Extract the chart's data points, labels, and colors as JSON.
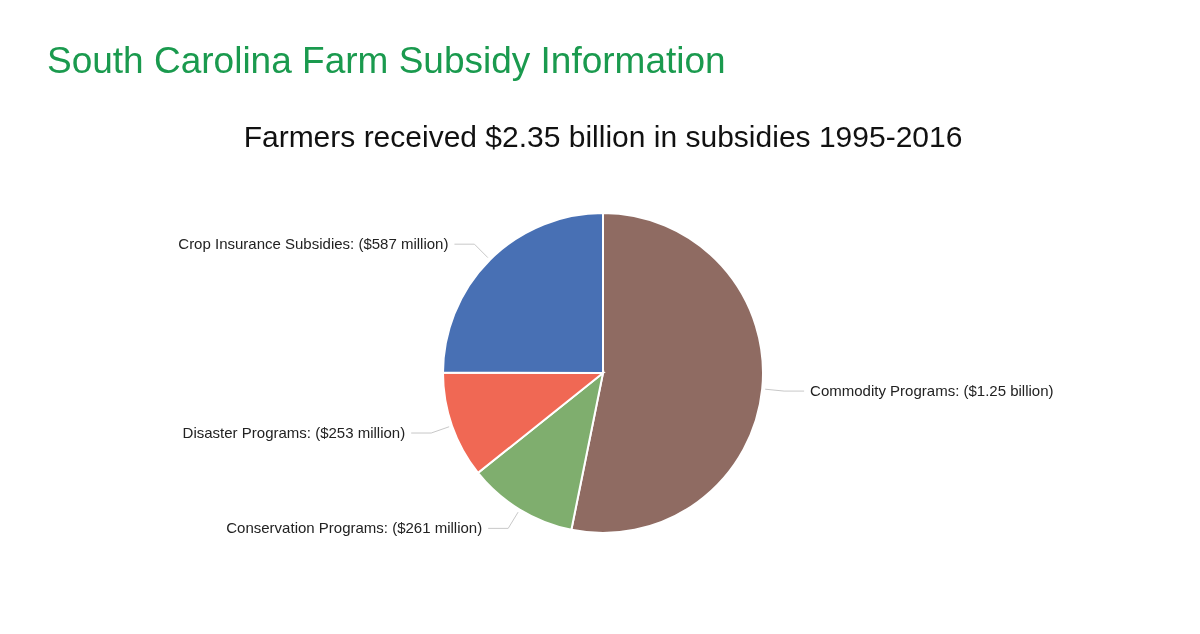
{
  "chart_data": {
    "type": "pie",
    "title": "South Carolina Farm Subsidy Information",
    "subtitle": "Farmers received $2.35 billion in subsidies 1995-2016",
    "categories": [
      "Commodity Programs: ($1.25 billion)",
      "Conservation Programs: ($261 million)",
      "Disaster Programs: ($253 million)",
      "Crop Insurance Subsidies: ($587 million)"
    ],
    "values": [
      1250,
      261,
      253,
      587
    ],
    "colors": [
      "#8f6b62",
      "#7fae6e",
      "#f06854",
      "#4870b4"
    ]
  }
}
